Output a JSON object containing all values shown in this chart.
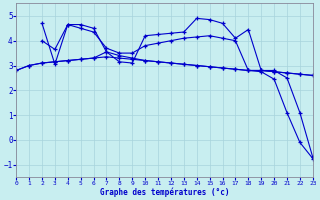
{
  "xlabel": "Graphe des températures (°c)",
  "bg_color": "#c8eef0",
  "grid_color": "#a8d4dc",
  "line_color": "#0000cc",
  "spine_color": "#888899",
  "xlim": [
    0,
    23
  ],
  "ylim": [
    -1.5,
    5.5
  ],
  "yticks": [
    -1,
    0,
    1,
    2,
    3,
    4,
    5
  ],
  "xticks": [
    0,
    1,
    2,
    3,
    4,
    5,
    6,
    7,
    8,
    9,
    10,
    11,
    12,
    13,
    14,
    15,
    16,
    17,
    18,
    19,
    20,
    21,
    22,
    23
  ],
  "curve_A": {
    "x": [
      0,
      1,
      2,
      3,
      4,
      5,
      6,
      7,
      8,
      9,
      10,
      11,
      12,
      13,
      14,
      15,
      16,
      17,
      18,
      19,
      20,
      21,
      22,
      23
    ],
    "y": [
      2.8,
      3.0,
      3.1,
      3.15,
      3.2,
      3.25,
      3.3,
      3.35,
      3.3,
      3.25,
      3.2,
      3.15,
      3.1,
      3.05,
      3.0,
      2.95,
      2.9,
      2.85,
      2.8,
      2.8,
      2.75,
      2.7,
      2.65,
      2.6
    ]
  },
  "curve_B": {
    "x": [
      2,
      3,
      4,
      5,
      6,
      7,
      8,
      9,
      10,
      11,
      12,
      13,
      14,
      15,
      16,
      17,
      18,
      19,
      20,
      21,
      22,
      23
    ],
    "y": [
      4.0,
      3.65,
      4.65,
      4.5,
      4.35,
      3.7,
      3.5,
      3.5,
      3.8,
      3.9,
      4.0,
      4.1,
      4.15,
      4.2,
      4.1,
      4.0,
      2.8,
      2.8,
      2.75,
      2.7,
      2.65,
      2.6
    ]
  },
  "curve_C": {
    "x": [
      2,
      3,
      4,
      5,
      6,
      7,
      8,
      9,
      10,
      11,
      12,
      13,
      14,
      15,
      16,
      17,
      18,
      19,
      20,
      21,
      22,
      23
    ],
    "y": [
      4.7,
      3.05,
      4.65,
      4.65,
      4.5,
      3.55,
      3.15,
      3.1,
      4.2,
      4.25,
      4.3,
      4.35,
      4.9,
      4.85,
      4.7,
      4.1,
      4.45,
      2.8,
      2.8,
      2.5,
      1.1,
      -0.7
    ]
  },
  "curve_D": {
    "x": [
      0,
      1,
      2,
      3,
      4,
      5,
      6,
      7,
      8,
      9,
      10,
      11,
      12,
      13,
      14,
      15,
      16,
      17,
      18,
      19,
      20,
      21,
      22,
      23
    ],
    "y": [
      2.8,
      3.0,
      3.1,
      3.15,
      3.2,
      3.25,
      3.3,
      3.55,
      3.4,
      3.3,
      3.2,
      3.15,
      3.1,
      3.05,
      3.0,
      2.95,
      2.9,
      2.85,
      2.8,
      2.75,
      2.45,
      1.1,
      -0.1,
      -0.75
    ]
  }
}
